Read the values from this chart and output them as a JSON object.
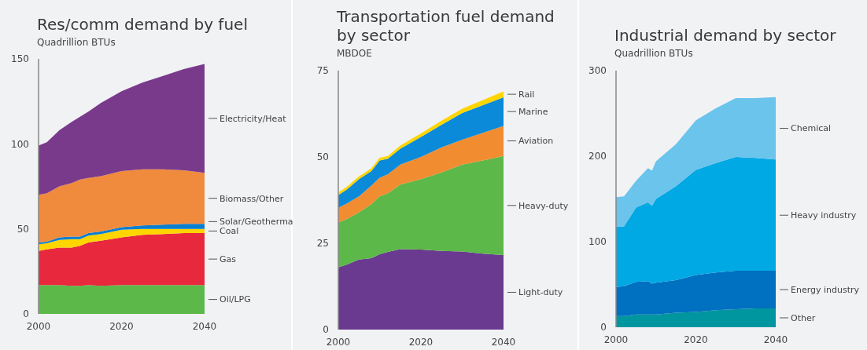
{
  "chart_data": [
    {
      "type": "area",
      "title": "Res/comm demand by fuel",
      "subtitle": "Quadrillion BTUs",
      "stacked": true,
      "legend": false,
      "grid": false,
      "xlim": [
        2000,
        2040
      ],
      "xticks": [
        2000,
        2020,
        2040
      ],
      "ylim": [
        0,
        150
      ],
      "yticks": [
        0,
        50,
        100,
        150
      ],
      "x": [
        2000,
        2002,
        2005,
        2008,
        2010,
        2012,
        2015,
        2020,
        2025,
        2030,
        2035,
        2040
      ],
      "series": [
        {
          "name": "Oil/LPG",
          "color": "#5cb848",
          "values": [
            17,
            17,
            17,
            16.5,
            16.5,
            17,
            16.5,
            17,
            17,
            17,
            17,
            17
          ]
        },
        {
          "name": "Gas",
          "color": "#e8283c",
          "values": [
            20,
            21,
            22,
            22.5,
            23.5,
            25,
            26.5,
            28,
            29.5,
            30,
            30.5,
            30.5
          ]
        },
        {
          "name": "Coal",
          "color": "#ffd500",
          "values": [
            4,
            3.5,
            4.5,
            5,
            4,
            4,
            4,
            4.5,
            3.5,
            3,
            2.5,
            2.5
          ]
        },
        {
          "name": "Solar/Geotherma",
          "color": "#0a7fd0",
          "values": [
            1,
            1,
            1.5,
            1.5,
            1.5,
            1.5,
            1.5,
            1.5,
            2,
            2.5,
            3,
            3
          ]
        },
        {
          "name": "Biomass/Other",
          "color": "#f08a3c",
          "values": [
            28,
            28.5,
            30,
            31.5,
            33.5,
            32.5,
            32.5,
            33,
            33,
            32.5,
            31.5,
            30
          ]
        },
        {
          "name": "Electricity/Heat",
          "color": "#7a3a8c",
          "values": [
            29,
            30,
            33,
            36,
            37,
            39,
            43,
            47,
            51,
            55,
            59.5,
            64
          ]
        }
      ]
    },
    {
      "type": "area",
      "title": "Transportation fuel demand by sector",
      "subtitle": "MBDOE",
      "stacked": true,
      "legend": false,
      "grid": false,
      "xlim": [
        2000,
        2040
      ],
      "xticks": [
        2000,
        2020,
        2040
      ],
      "ylim": [
        0,
        75
      ],
      "yticks": [
        0,
        25,
        50,
        75
      ],
      "x": [
        2000,
        2002,
        2005,
        2008,
        2010,
        2012,
        2015,
        2020,
        2025,
        2030,
        2035,
        2040
      ],
      "series": [
        {
          "name": "Light-duty",
          "color": "#6a3a90",
          "values": [
            18,
            18.8,
            20.3,
            20.7,
            21.8,
            22.5,
            23.3,
            23.2,
            22.8,
            22.6,
            22,
            21.6
          ]
        },
        {
          "name": "Heavy-duty",
          "color": "#5cb848",
          "values": [
            13,
            13.2,
            13.7,
            15.6,
            16.8,
            17,
            18.7,
            20.4,
            22.7,
            25.2,
            27,
            28.7
          ]
        },
        {
          "name": "Aviation",
          "color": "#f28c30",
          "values": [
            4.3,
            4.5,
            4.6,
            5.4,
            5.4,
            5.5,
            5.8,
            6.4,
            7.3,
            7.2,
            8,
            8.7
          ]
        },
        {
          "name": "Marine",
          "color": "#0a8ad8",
          "values": [
            3.7,
            4,
            5,
            4.2,
            5,
            4.5,
            4.6,
            5.8,
            6.5,
            7.7,
            8,
            8.3
          ]
        },
        {
          "name": "Rail",
          "color": "#ffd500",
          "values": [
            0.8,
            0.8,
            0.8,
            0.8,
            0.8,
            0.8,
            0.9,
            1,
            1.2,
            1.3,
            1.5,
            1.7
          ]
        }
      ]
    },
    {
      "type": "area",
      "title": "Industrial demand by sector",
      "subtitle": "Quadrillion BTUs",
      "stacked": true,
      "legend": false,
      "grid": false,
      "xlim": [
        2000,
        2040
      ],
      "xticks": [
        2000,
        2020,
        2040
      ],
      "ylim": [
        0,
        300
      ],
      "yticks": [
        0,
        100,
        200,
        300
      ],
      "x": [
        2000,
        2002,
        2005,
        2008,
        2009,
        2010,
        2015,
        2020,
        2025,
        2030,
        2035,
        2040
      ],
      "series": [
        {
          "name": "Other",
          "color": "#0096a0",
          "values": [
            13,
            13,
            15,
            15,
            15,
            15,
            17,
            18,
            20,
            21,
            22,
            22
          ]
        },
        {
          "name": "Energy industry",
          "color": "#0070c0",
          "values": [
            34,
            35,
            38,
            39,
            36,
            37,
            38,
            43,
            44,
            45,
            44,
            44
          ]
        },
        {
          "name": "Heavy industry",
          "color": "#00a8e4",
          "values": [
            71,
            70,
            87,
            92,
            91,
            98,
            110,
            123,
            128,
            133,
            132,
            130
          ]
        },
        {
          "name": "Chemical",
          "color": "#6ac4ec",
          "values": [
            34,
            35,
            31,
            40,
            41,
            44,
            49,
            58,
            64,
            69,
            70,
            73
          ]
        }
      ]
    }
  ]
}
